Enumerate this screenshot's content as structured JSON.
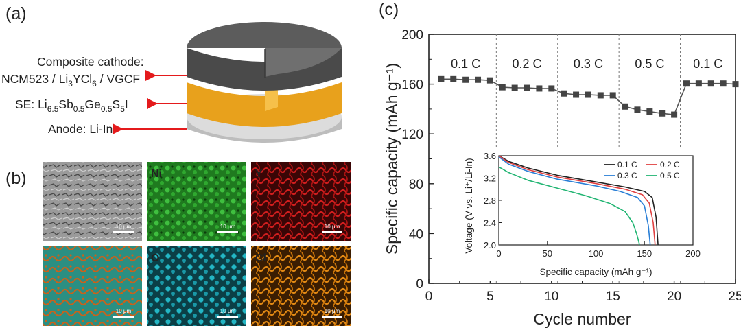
{
  "panel_labels": {
    "a": "(a)",
    "b": "(b)",
    "c": "(c)"
  },
  "panel_a": {
    "cathode_line1": "Composite cathode:",
    "cathode_line2": "NCM523 / Li3YCl6 / VGCF",
    "electrolyte": "SE: Li6.5Sb0.5Ge0.5S5I",
    "anode": "Anode: Li-In",
    "colors": {
      "cathode": "#5c5c5c",
      "electrolyte": "#e8a11c",
      "anode": "#c8c8c8",
      "arrow": "#e41a1c"
    }
  },
  "panel_b": {
    "maps": [
      {
        "label": "",
        "kind": "sem",
        "scalebar": "10 μm"
      },
      {
        "label": "Ni",
        "kind": "green",
        "scalebar": "10 μm"
      },
      {
        "label": "Y",
        "kind": "red",
        "scalebar": "10 μm"
      },
      {
        "label": "",
        "kind": "overlay",
        "scalebar": "10 μm"
      },
      {
        "label": "O",
        "kind": "cyan",
        "scalebar": "10 μm"
      },
      {
        "label": "Cl",
        "kind": "orange",
        "scalebar": "10 μm"
      }
    ]
  },
  "chart_data": [
    {
      "type": "line",
      "xlabel": "Cycle number",
      "ylabel": "Specific capacity (mAh g⁻¹)",
      "xlim": [
        0,
        25
      ],
      "ylim": [
        0,
        200
      ],
      "xticks": [
        "0",
        "5",
        "10",
        "15",
        "20",
        "25"
      ],
      "yticks": [
        "0",
        "40",
        "80",
        "120",
        "160",
        "200"
      ],
      "rate_labels": [
        "0.1 C",
        "0.2 C",
        "0.3 C",
        "0.5 C",
        "0.1 C"
      ],
      "rate_boundaries": [
        5.5,
        10.5,
        15.5,
        20.5
      ],
      "marker": "square",
      "color": "#555555",
      "series": [
        {
          "x": [
            1,
            2,
            3,
            4,
            5,
            6,
            7,
            8,
            9,
            10,
            11,
            12,
            13,
            14,
            15,
            16,
            17,
            18,
            19,
            20,
            21,
            22,
            23,
            24,
            25
          ],
          "y": [
            164,
            164,
            163.5,
            163.5,
            163,
            157.5,
            157,
            157,
            156.5,
            156.5,
            152.5,
            151.5,
            151.5,
            151,
            151,
            142,
            139.5,
            138,
            136.5,
            135.5,
            160.5,
            160.5,
            160.5,
            160.5,
            160
          ]
        }
      ]
    },
    {
      "type": "line",
      "xlabel": "Specific capacity (mAh g⁻¹)",
      "ylabel": "Voltage (V vs. Li⁺/Li-In)",
      "xlim": [
        0,
        200
      ],
      "ylim": [
        2.0,
        3.6
      ],
      "xticks": [
        "0",
        "50",
        "100",
        "150",
        "200"
      ],
      "yticks": [
        "2.0",
        "2.4",
        "2.8",
        "3.2",
        "3.6"
      ],
      "legend": "top-right",
      "series": [
        {
          "name": "0.1 C",
          "color": "#222222",
          "x": [
            0,
            10,
            30,
            60,
            100,
            130,
            150,
            158,
            162,
            164
          ],
          "y": [
            3.6,
            3.5,
            3.38,
            3.25,
            3.13,
            3.04,
            2.96,
            2.85,
            2.5,
            2.0
          ]
        },
        {
          "name": "0.2 C",
          "color": "#e04040",
          "x": [
            0,
            10,
            30,
            60,
            100,
            130,
            148,
            155,
            159,
            161
          ],
          "y": [
            3.6,
            3.48,
            3.35,
            3.22,
            3.1,
            3.0,
            2.9,
            2.75,
            2.4,
            2.0
          ]
        },
        {
          "name": "0.3 C",
          "color": "#2a7fd6",
          "x": [
            0,
            10,
            30,
            60,
            100,
            125,
            143,
            150,
            154,
            156
          ],
          "y": [
            3.58,
            3.45,
            3.32,
            3.18,
            3.06,
            2.96,
            2.85,
            2.7,
            2.35,
            2.0
          ]
        },
        {
          "name": "0.5 C",
          "color": "#22b573",
          "x": [
            0,
            10,
            30,
            60,
            90,
            115,
            130,
            138,
            142,
            145
          ],
          "y": [
            3.4,
            3.3,
            3.16,
            3.02,
            2.88,
            2.74,
            2.6,
            2.4,
            2.2,
            2.0
          ]
        }
      ]
    }
  ]
}
